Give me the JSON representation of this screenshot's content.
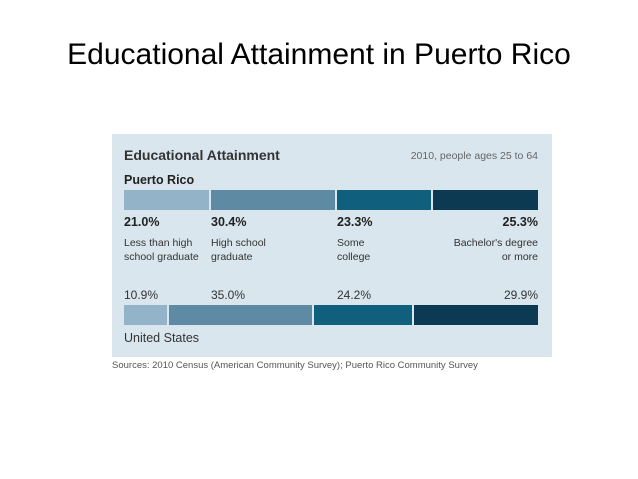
{
  "slide_title": "Educational Attainment in Puerto Rico",
  "chart_data": {
    "type": "bar",
    "stacked": true,
    "orientation": "horizontal",
    "title": "Educational Attainment",
    "subtitle": "2010, people ages 25 to 64",
    "categories": [
      "Less than high school graduate",
      "High school graduate",
      "Some college",
      "Bachelor's degree or more"
    ],
    "category_lines": [
      "Less than high\nschool graduate",
      "High school\ngraduate",
      "Some\ncollege",
      "Bachelor's degree\nor more"
    ],
    "series": [
      {
        "name": "Puerto Rico",
        "values": [
          21.0,
          30.4,
          23.3,
          25.3
        ],
        "labels": [
          "21.0%",
          "30.4%",
          "23.3%",
          "25.3%"
        ]
      },
      {
        "name": "United States",
        "values": [
          10.9,
          35.0,
          24.2,
          29.9
        ],
        "labels": [
          "10.9%",
          "35.0%",
          "24.2%",
          "29.9%"
        ]
      }
    ],
    "colors": [
      "#93b3c8",
      "#5f8aa3",
      "#0f5f7d",
      "#0c3a52"
    ],
    "xlim": [
      0,
      100
    ],
    "source": "Sources: 2010 Census (American Community Survey); Puerto Rico Community Survey"
  }
}
